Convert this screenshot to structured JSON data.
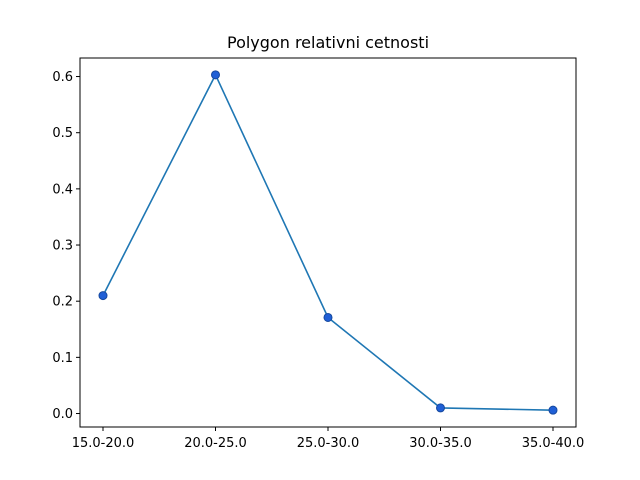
{
  "chart_data": {
    "type": "line",
    "title": "Polygon relativni cetnosti",
    "xlabel": "",
    "ylabel": "",
    "categories": [
      "15.0-20.0",
      "20.0-25.0",
      "25.0-30.0",
      "30.0-35.0",
      "35.0-40.0"
    ],
    "series": [
      {
        "values": [
          0.21,
          0.603,
          0.171,
          0.01,
          0.006
        ],
        "color": "#1f77b4",
        "marker": "circle",
        "marker_fill": "#1f5fd6",
        "marker_edge": "#15489e"
      }
    ],
    "ylim": [
      -0.024,
      0.633
    ],
    "yticks": [
      0.0,
      0.1,
      0.2,
      0.3,
      0.4,
      0.5,
      0.6
    ],
    "ytick_labels": [
      "0.0",
      "0.1",
      "0.2",
      "0.3",
      "0.4",
      "0.5",
      "0.6"
    ],
    "grid": false,
    "legend": "none"
  }
}
